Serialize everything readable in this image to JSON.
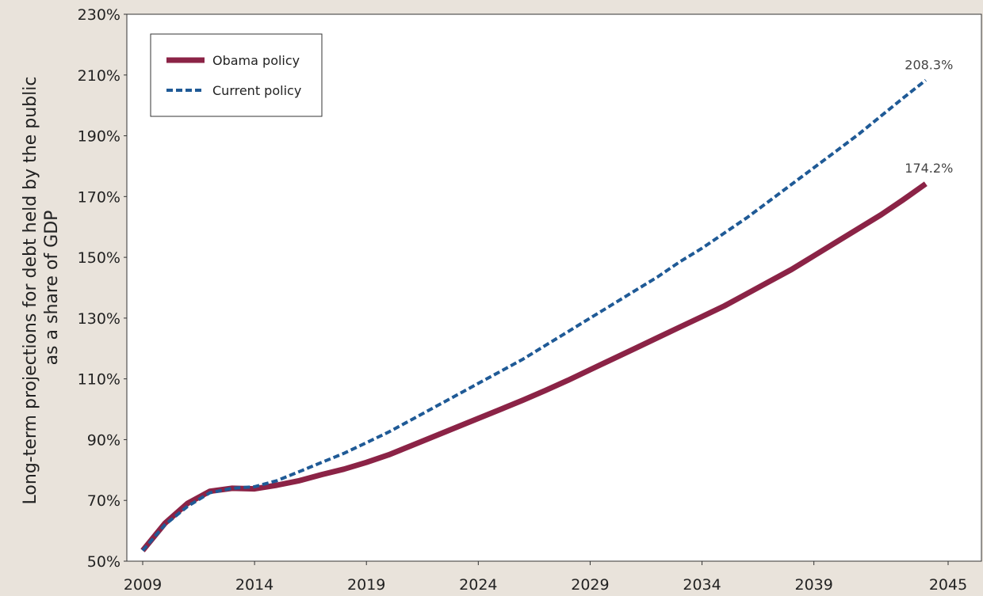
{
  "chart_data": {
    "type": "line",
    "ylabel_line1": "Long-term projections for debt held by the public",
    "ylabel_line2": "as a share of GDP",
    "ylim": [
      50,
      230
    ],
    "y_ticks": [
      50,
      70,
      90,
      110,
      130,
      150,
      170,
      190,
      210,
      230
    ],
    "y_tick_suffix": "%",
    "x_ticks": [
      2009,
      2014,
      2019,
      2024,
      2029,
      2034,
      2039,
      2045
    ],
    "xlim": [
      2009,
      2045
    ],
    "grid": false,
    "legend_placement": "top-left",
    "series": [
      {
        "name": "Obama policy",
        "color": "#8b2346",
        "style": "solid",
        "end_label": "174.2%",
        "points": [
          [
            2009,
            53.5
          ],
          [
            2010,
            62.5
          ],
          [
            2011,
            69.0
          ],
          [
            2012,
            73.0
          ],
          [
            2013,
            74.0
          ],
          [
            2014,
            73.8
          ],
          [
            2015,
            75.0
          ],
          [
            2016,
            76.5
          ],
          [
            2017,
            78.5
          ],
          [
            2018,
            80.3
          ],
          [
            2019,
            82.5
          ],
          [
            2020,
            85.0
          ],
          [
            2021,
            88.0
          ],
          [
            2022,
            91.0
          ],
          [
            2023,
            94.0
          ],
          [
            2024,
            97.0
          ],
          [
            2025,
            100.0
          ],
          [
            2026,
            103.0
          ],
          [
            2027,
            106.2
          ],
          [
            2028,
            109.5
          ],
          [
            2029,
            113.0
          ],
          [
            2030,
            116.5
          ],
          [
            2031,
            120.0
          ],
          [
            2032,
            123.5
          ],
          [
            2033,
            127.0
          ],
          [
            2034,
            130.5
          ],
          [
            2035,
            134.0
          ],
          [
            2036,
            138.0
          ],
          [
            2037,
            142.0
          ],
          [
            2038,
            146.0
          ],
          [
            2039,
            150.5
          ],
          [
            2040,
            155.0
          ],
          [
            2041,
            159.5
          ],
          [
            2042,
            164.0
          ],
          [
            2043,
            169.0
          ],
          [
            2044,
            174.2
          ]
        ]
      },
      {
        "name": "Current policy",
        "color": "#1f5a96",
        "style": "dashed",
        "end_label": "208.3%",
        "points": [
          [
            2009,
            53.5
          ],
          [
            2010,
            62.0
          ],
          [
            2011,
            68.0
          ],
          [
            2012,
            72.5
          ],
          [
            2013,
            74.0
          ],
          [
            2014,
            74.5
          ],
          [
            2015,
            76.5
          ],
          [
            2016,
            79.5
          ],
          [
            2017,
            82.5
          ],
          [
            2018,
            85.5
          ],
          [
            2019,
            89.0
          ],
          [
            2020,
            92.5
          ],
          [
            2021,
            96.5
          ],
          [
            2022,
            100.5
          ],
          [
            2023,
            104.5
          ],
          [
            2024,
            108.5
          ],
          [
            2025,
            112.5
          ],
          [
            2026,
            116.5
          ],
          [
            2027,
            121.0
          ],
          [
            2028,
            125.5
          ],
          [
            2029,
            130.0
          ],
          [
            2030,
            134.5
          ],
          [
            2031,
            139.0
          ],
          [
            2032,
            143.5
          ],
          [
            2033,
            148.5
          ],
          [
            2034,
            153.0
          ],
          [
            2035,
            158.0
          ],
          [
            2036,
            163.0
          ],
          [
            2037,
            168.5
          ],
          [
            2038,
            174.0
          ],
          [
            2039,
            179.5
          ],
          [
            2040,
            185.0
          ],
          [
            2041,
            190.5
          ],
          [
            2042,
            196.5
          ],
          [
            2043,
            202.5
          ],
          [
            2044,
            208.3
          ]
        ]
      }
    ]
  }
}
